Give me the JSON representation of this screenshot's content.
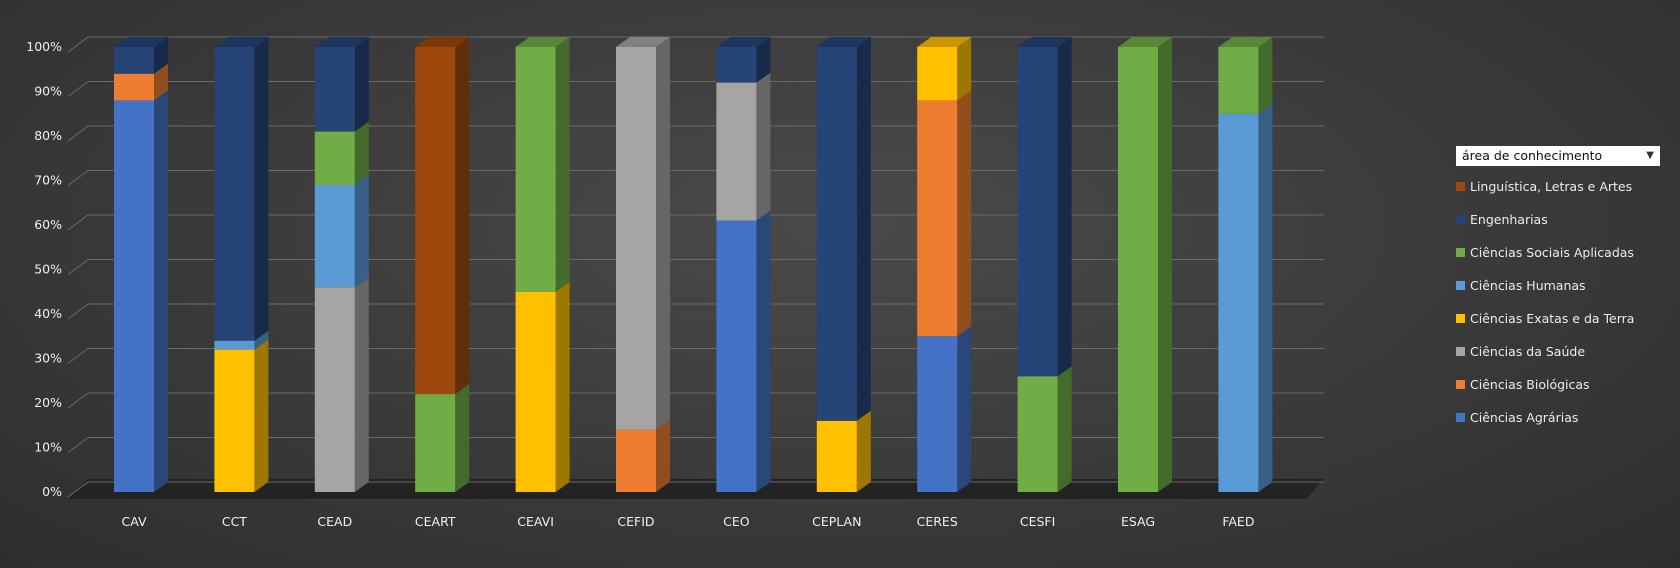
{
  "chart_data": {
    "type": "bar",
    "stacked": "100%",
    "categories": [
      "CAV",
      "CCT",
      "CEAD",
      "CEART",
      "CEAVI",
      "CEFID",
      "CEO",
      "CEPLAN",
      "CERES",
      "CESFI",
      "ESAG",
      "FAED"
    ],
    "series": [
      {
        "name": "Ciências Agrárias",
        "color": "#4472c4",
        "values": [
          88,
          0,
          0,
          0,
          0,
          0,
          61,
          0,
          35,
          0,
          0,
          0
        ]
      },
      {
        "name": "Ciências Biológicas",
        "color": "#ed7d31",
        "values": [
          6,
          0,
          0,
          0,
          0,
          14,
          0,
          0,
          53,
          0,
          0,
          0
        ]
      },
      {
        "name": "Ciências da Saúde",
        "color": "#a5a5a5",
        "values": [
          0,
          0,
          46,
          0,
          0,
          86,
          31,
          0,
          0,
          0,
          0,
          0
        ]
      },
      {
        "name": "Ciências Exatas e da Terra",
        "color": "#ffc000",
        "values": [
          0,
          32,
          0,
          0,
          45,
          0,
          0,
          16,
          12,
          0,
          0,
          0
        ]
      },
      {
        "name": "Ciências Humanas",
        "color": "#5b9bd5",
        "values": [
          0,
          2,
          23,
          0,
          0,
          0,
          0,
          0,
          0,
          0,
          0,
          85
        ]
      },
      {
        "name": "Ciências Sociais Aplicadas",
        "color": "#70ad47",
        "values": [
          0,
          0,
          12,
          22,
          55,
          0,
          0,
          0,
          0,
          26,
          100,
          15
        ]
      },
      {
        "name": "Engenharias",
        "color": "#264478",
        "values": [
          6,
          66,
          19,
          0,
          0,
          0,
          8,
          84,
          0,
          74,
          0,
          0
        ]
      },
      {
        "name": "Linguística, Letras e Artes",
        "color": "#9e480e",
        "values": [
          0,
          0,
          0,
          78,
          0,
          0,
          0,
          0,
          0,
          0,
          0,
          0
        ]
      }
    ],
    "yticks": [
      "0%",
      "10%",
      "20%",
      "30%",
      "40%",
      "50%",
      "60%",
      "70%",
      "80%",
      "90%",
      "100%"
    ],
    "ylim": [
      0,
      100
    ],
    "grid": true,
    "legend_title": "área de conhecimento",
    "legend_position": "right"
  }
}
